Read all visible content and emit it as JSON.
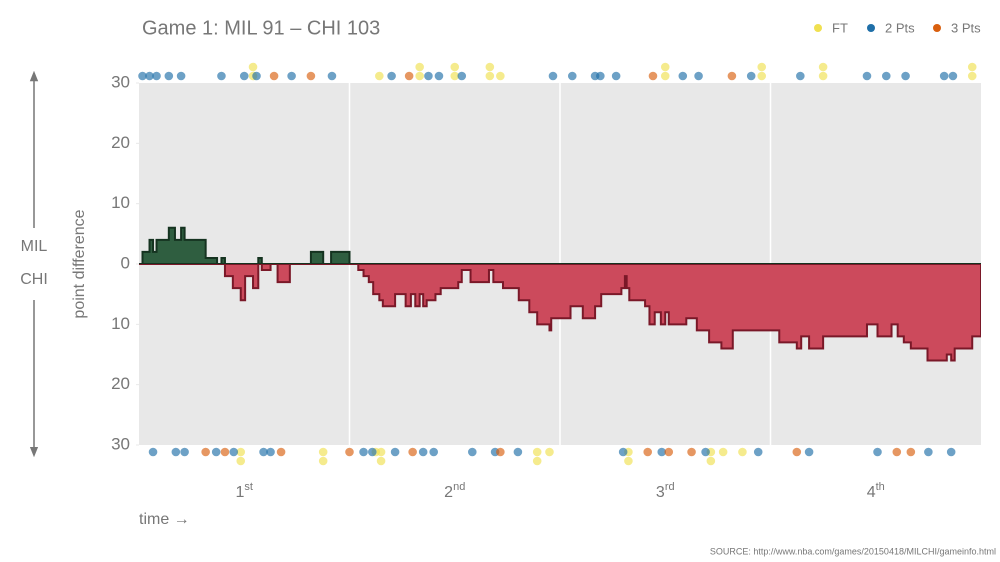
{
  "chart_data": {
    "type": "step-area",
    "title": "Game 1: MIL 91  –  CHI 103",
    "y_label": "point difference",
    "top_team": "MIL",
    "bottom_team": "CHI",
    "x_label": "time →",
    "source": "SOURCE: http://www.nba.com/games/20150418/MILCHI/gameinfo.html",
    "quarters": [
      {
        "num": "1",
        "sup": "st"
      },
      {
        "num": "2",
        "sup": "nd"
      },
      {
        "num": "3",
        "sup": "rd"
      },
      {
        "num": "4",
        "sup": "th"
      }
    ],
    "xlim": [
      0,
      48
    ],
    "ylim": [
      -30,
      30
    ],
    "yticks": [
      {
        "value": -30,
        "label": "30"
      },
      {
        "value": -20,
        "label": "20"
      },
      {
        "value": -10,
        "label": "10"
      },
      0,
      10,
      20,
      30
    ],
    "pos_color": "#2f5e40",
    "pos_line_color": "#153320",
    "neg_color": "#cc4a5c",
    "neg_line_color": "#7a1828",
    "x": [
      0,
      0.2,
      0.6,
      0.8,
      1.0,
      1.7,
      2.05,
      2.4,
      2.6,
      3.8,
      4.45,
      4.7,
      4.9,
      5.35,
      5.8,
      6.05,
      6.5,
      6.8,
      7.0,
      7.5,
      7.9,
      8.6,
      9.8,
      10.5,
      10.95,
      12.0,
      12.5,
      12.8,
      13.1,
      13.35,
      13.7,
      13.9,
      14.6,
      15.2,
      15.5,
      15.75,
      16.0,
      16.2,
      16.4,
      16.9,
      17.2,
      18.2,
      18.4,
      18.9,
      19.95,
      20.2,
      20.75,
      21.65,
      22.25,
      22.7,
      23.4,
      23.5,
      24.6,
      25.3,
      26.0,
      26.35,
      27.5,
      27.7,
      27.8,
      27.95,
      28.85,
      29.1,
      29.4,
      29.75,
      30.0,
      30.2,
      31.2,
      31.8,
      32.5,
      33.2,
      33.85,
      36.5,
      37.5,
      37.75,
      38.2,
      39.0,
      41.5,
      42.1,
      42.9,
      43.25,
      43.6,
      44.0,
      44.95,
      46.05,
      46.3,
      46.5,
      47.5
    ],
    "values": [
      0,
      2,
      4,
      2,
      4,
      6,
      4,
      6,
      4,
      1,
      0,
      1,
      -2,
      -4,
      -6,
      -2,
      -4,
      1,
      -1,
      0,
      -3,
      0,
      2,
      0,
      2,
      0,
      -1,
      -2,
      -3,
      -5,
      -6,
      -7,
      -5,
      -7,
      -5,
      -7,
      -5,
      -7,
      -6,
      -5,
      -4,
      -3,
      -1,
      -3,
      -1,
      -3,
      -4,
      -6,
      -8,
      -10,
      -11,
      -9,
      -7,
      -9,
      -7,
      -5,
      -4,
      -2,
      -4,
      -6,
      -7,
      -10,
      -8,
      -10,
      -8,
      -10,
      -9,
      -11,
      -13,
      -14,
      -11,
      -13,
      -14,
      -12,
      -14,
      -12,
      -10,
      -12,
      -10,
      -12,
      -13,
      -14,
      -16,
      -15,
      -16,
      -14,
      -12
    ],
    "series": [
      {
        "name": "FT",
        "color": "#f0e050",
        "top": [
          6.5,
          6.5,
          13.7,
          16.0,
          16.0,
          18.0,
          18.0,
          20.0,
          20.0,
          20.6,
          30.0,
          30.0,
          35.5,
          35.5,
          39.0,
          39.0,
          47.5,
          47.5
        ],
        "bottom": [
          5.8,
          5.8,
          10.5,
          10.5,
          13.5,
          13.8,
          13.8,
          22.7,
          22.7,
          23.4,
          27.9,
          27.9,
          32.6,
          32.6,
          33.3,
          34.4
        ]
      },
      {
        "name": "2 Pts",
        "color": "#1f6fa8",
        "top": [
          0.2,
          0.6,
          1.0,
          1.7,
          2.4,
          4.7,
          6.0,
          6.7,
          8.7,
          11.0,
          14.4,
          16.5,
          17.1,
          18.4,
          23.6,
          24.7,
          26.0,
          26.3,
          27.2,
          31.0,
          31.9,
          34.9,
          37.7,
          41.5,
          42.6,
          43.7,
          45.9,
          46.4
        ],
        "bottom": [
          0.8,
          2.1,
          2.6,
          4.4,
          5.4,
          7.1,
          7.5,
          12.8,
          13.3,
          14.6,
          16.2,
          16.8,
          19.0,
          20.3,
          21.6,
          27.6,
          29.8,
          32.3,
          35.3,
          38.2,
          42.1,
          45.0,
          46.3
        ]
      },
      {
        "name": "3 Pts",
        "color": "#d95f0e",
        "top": [
          7.7,
          9.8,
          15.4,
          29.3,
          33.8
        ],
        "bottom": [
          3.8,
          4.9,
          8.1,
          12.0,
          15.6,
          20.6,
          29.0,
          30.2,
          31.5,
          37.5,
          43.2,
          44.0
        ]
      }
    ]
  }
}
